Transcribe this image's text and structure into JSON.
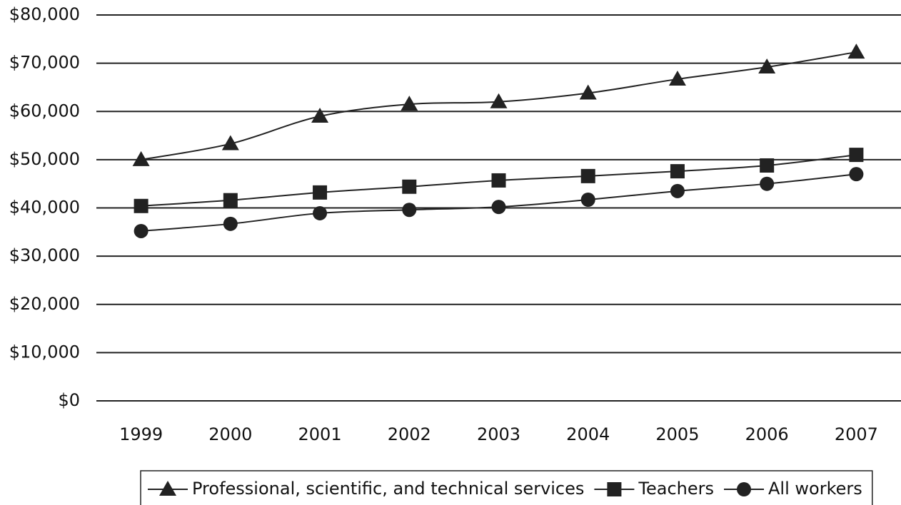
{
  "chart_data": {
    "type": "line",
    "categories": [
      "1999",
      "2000",
      "2001",
      "2002",
      "2003",
      "2004",
      "2005",
      "2006",
      "2007"
    ],
    "series": [
      {
        "name": "Professional, scientific, and technical services",
        "color": "#222222",
        "marker": "triangle",
        "values": [
          50000,
          53300,
          59000,
          61500,
          62000,
          63800,
          66700,
          69200,
          72300
        ]
      },
      {
        "name": "Teachers",
        "color": "#222222",
        "marker": "square",
        "values": [
          40400,
          41600,
          43200,
          44400,
          45700,
          46600,
          47600,
          48800,
          51000
        ]
      },
      {
        "name": "All workers",
        "color": "#222222",
        "marker": "circle",
        "values": [
          35200,
          36700,
          38900,
          39600,
          40200,
          41700,
          43500,
          45000,
          47000
        ]
      }
    ],
    "ylim": [
      0,
      80000
    ],
    "yticks": [
      {
        "value": 0,
        "label": "$0"
      },
      {
        "value": 10000,
        "label": "$10,000"
      },
      {
        "value": 20000,
        "label": "$20,000"
      },
      {
        "value": 30000,
        "label": "$30,000"
      },
      {
        "value": 40000,
        "label": "$40,000"
      },
      {
        "value": 50000,
        "label": "$50,000"
      },
      {
        "value": 60000,
        "label": "$60,000"
      },
      {
        "value": 70000,
        "label": "$70,000"
      },
      {
        "value": 80000,
        "label": "$80,000"
      }
    ],
    "grid": true,
    "legend": "bottom",
    "smooth": true
  }
}
